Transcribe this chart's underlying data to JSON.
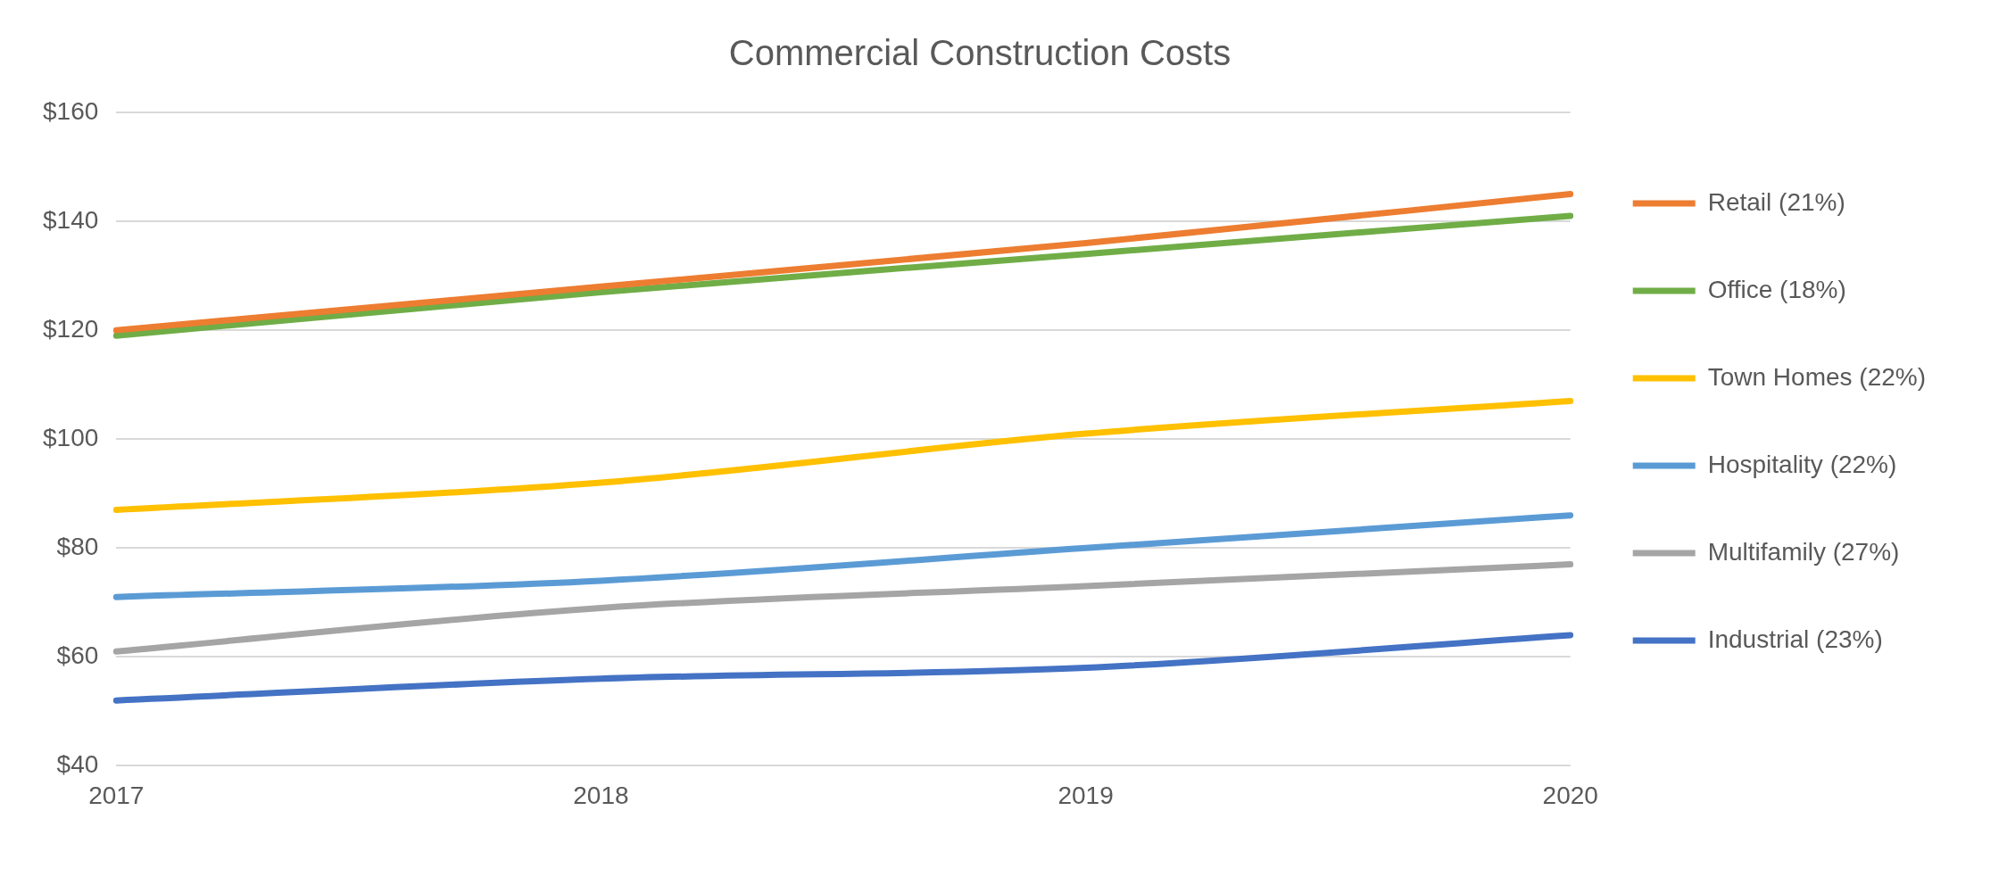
{
  "chart_data": {
    "type": "line",
    "title": "Commercial Construction Costs",
    "categories": [
      "2017",
      "2018",
      "2019",
      "2020"
    ],
    "series": [
      {
        "name": "Retail (21%)",
        "color": "#ed7d31",
        "values": [
          120,
          128,
          136,
          145
        ]
      },
      {
        "name": "Office (18%)",
        "color": "#70ad47",
        "values": [
          119,
          127,
          134,
          141
        ]
      },
      {
        "name": "Town Homes (22%)",
        "color": "#ffc000",
        "values": [
          87,
          92,
          101,
          107
        ]
      },
      {
        "name": "Hospitality (22%)",
        "color": "#5b9bd5",
        "values": [
          71,
          74,
          80,
          86
        ]
      },
      {
        "name": "Multifamily (27%)",
        "color": "#a5a5a5",
        "values": [
          61,
          69,
          73,
          77
        ]
      },
      {
        "name": "Industrial (23%)",
        "color": "#4472c4",
        "values": [
          52,
          56,
          58,
          64
        ]
      }
    ],
    "ylim": [
      40,
      160
    ],
    "yticks": [
      {
        "value": 40,
        "label": "$40"
      },
      {
        "value": 60,
        "label": "$60"
      },
      {
        "value": 80,
        "label": "$80"
      },
      {
        "value": 100,
        "label": "$100"
      },
      {
        "value": 120,
        "label": "$120"
      },
      {
        "value": 140,
        "label": "$140"
      },
      {
        "value": 160,
        "label": "$160"
      }
    ],
    "grid": "y",
    "legend": "right",
    "marker": "none",
    "line_style": "solid"
  }
}
